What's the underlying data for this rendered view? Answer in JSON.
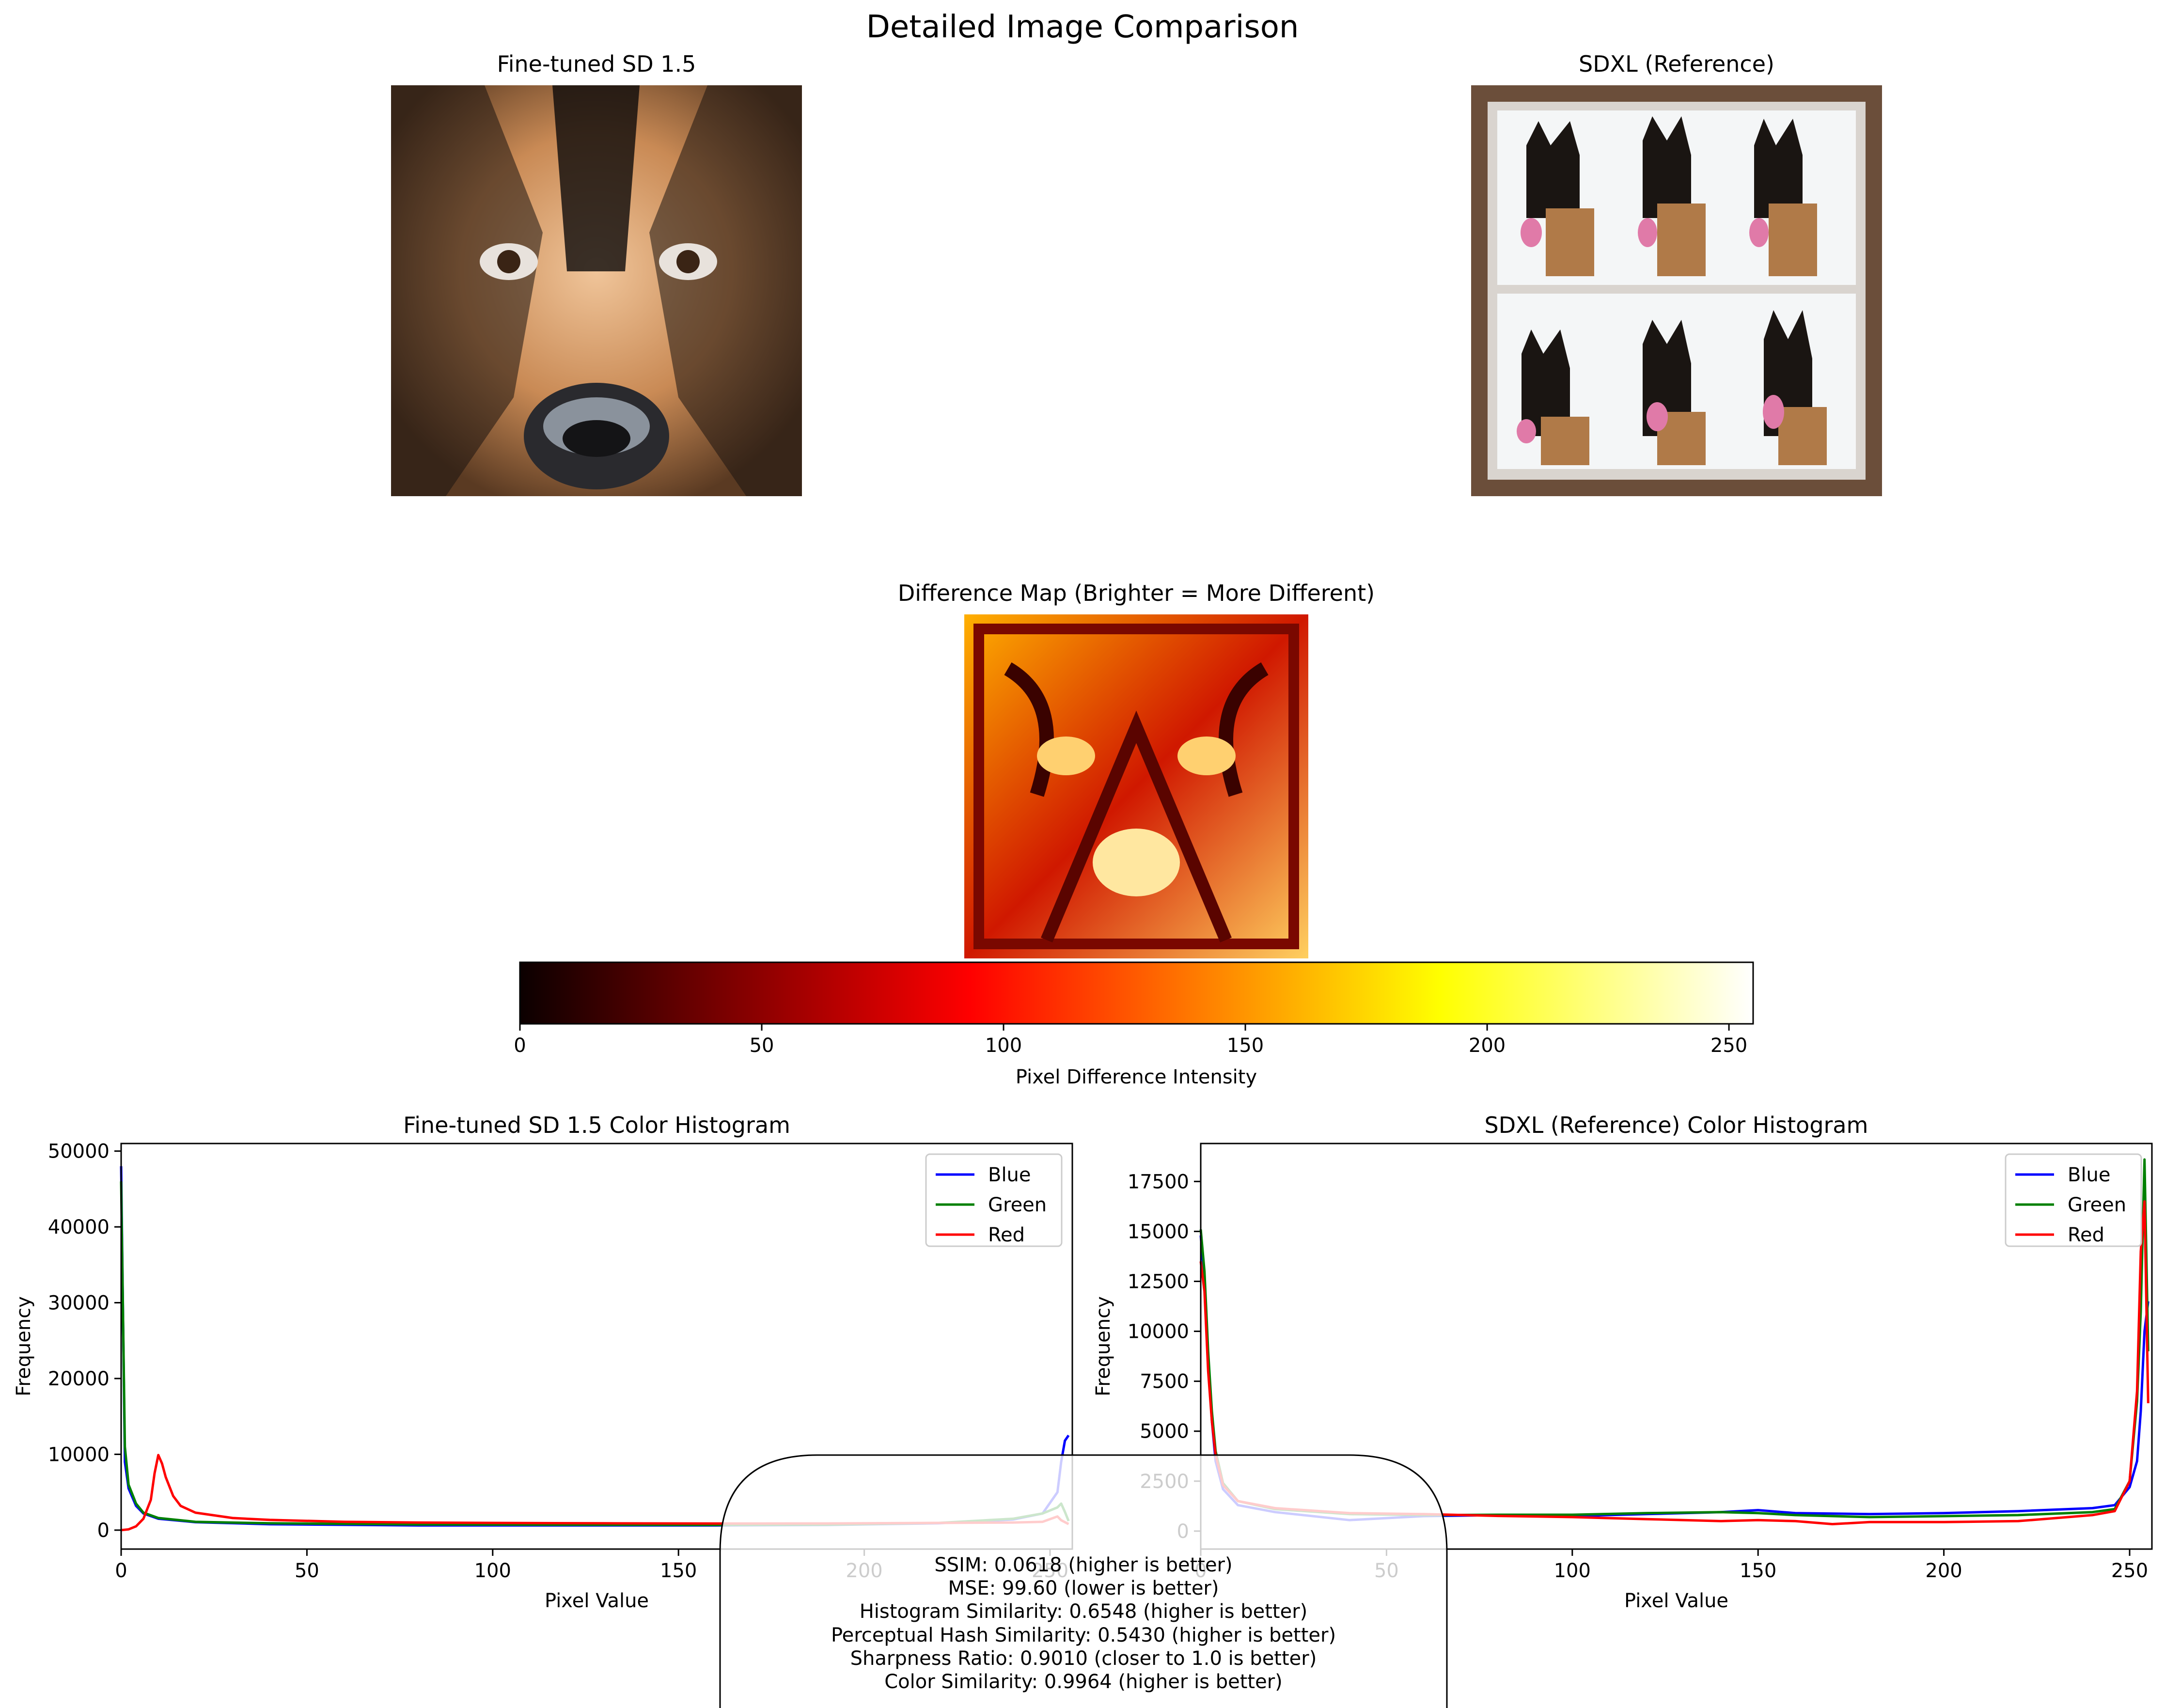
{
  "figure_title": "Detailed Image Comparison",
  "images": {
    "left_title": "Fine-tuned SD 1.5",
    "right_title": "SDXL (Reference)",
    "diff_title": "Difference Map (Brighter = More Different)"
  },
  "colorbar": {
    "label": "Pixel Difference Intensity",
    "ticks": [
      "0",
      "50",
      "100",
      "150",
      "200",
      "250"
    ],
    "tick_values": [
      0,
      50,
      100,
      150,
      200,
      250
    ],
    "range": [
      0,
      255
    ],
    "colormap": "hot"
  },
  "metrics": [
    "SSIM: 0.0618 (higher is better)",
    "MSE: 99.60 (lower is better)",
    "Histogram Similarity: 0.6548 (higher is better)",
    "Perceptual Hash Similarity: 0.5430 (higher is better)",
    "Sharpness Ratio: 0.9010 (closer to 1.0 is better)",
    "Color Similarity: 0.9964 (higher is better)"
  ],
  "colors": {
    "blue": "#0000ff",
    "green": "#008000",
    "red": "#ff0000"
  },
  "chart_data": [
    {
      "type": "line",
      "title": "Fine-tuned SD 1.5 Color Histogram",
      "xlabel": "Pixel Value",
      "ylabel": "Frequency",
      "xlim": [
        0,
        256
      ],
      "ylim": [
        -2500,
        51000
      ],
      "x_ticks": [
        "0",
        "50",
        "100",
        "150",
        "200",
        "250"
      ],
      "y_ticks": [
        "0",
        "10000",
        "20000",
        "30000",
        "40000",
        "50000"
      ],
      "legend_position": "upper right",
      "series": [
        {
          "name": "Blue",
          "color": "#0000ff",
          "points": [
            [
              0,
              48000
            ],
            [
              1,
              9000
            ],
            [
              2,
              5500
            ],
            [
              4,
              3200
            ],
            [
              6,
              2200
            ],
            [
              10,
              1500
            ],
            [
              20,
              1050
            ],
            [
              40,
              780
            ],
            [
              80,
              620
            ],
            [
              120,
              610
            ],
            [
              160,
              620
            ],
            [
              190,
              680
            ],
            [
              220,
              900
            ],
            [
              240,
              1400
            ],
            [
              248,
              2200
            ],
            [
              252,
              5000
            ],
            [
              253,
              9000
            ],
            [
              254,
              11800
            ],
            [
              255,
              12500
            ]
          ]
        },
        {
          "name": "Green",
          "color": "#008000",
          "points": [
            [
              0,
              46000
            ],
            [
              1,
              11000
            ],
            [
              2,
              6000
            ],
            [
              4,
              3500
            ],
            [
              6,
              2300
            ],
            [
              10,
              1600
            ],
            [
              20,
              1100
            ],
            [
              40,
              900
            ],
            [
              80,
              750
            ],
            [
              120,
              700
            ],
            [
              160,
              680
            ],
            [
              190,
              720
            ],
            [
              220,
              950
            ],
            [
              240,
              1500
            ],
            [
              248,
              2200
            ],
            [
              252,
              3000
            ],
            [
              253,
              3500
            ],
            [
              254,
              2400
            ],
            [
              255,
              1200
            ]
          ]
        },
        {
          "name": "Red",
          "color": "#ff0000",
          "points": [
            [
              0,
              0
            ],
            [
              2,
              100
            ],
            [
              4,
              500
            ],
            [
              6,
              1500
            ],
            [
              8,
              4000
            ],
            [
              9,
              7500
            ],
            [
              10,
              9900
            ],
            [
              11,
              8800
            ],
            [
              12,
              7000
            ],
            [
              14,
              4500
            ],
            [
              16,
              3200
            ],
            [
              20,
              2300
            ],
            [
              30,
              1600
            ],
            [
              40,
              1350
            ],
            [
              60,
              1100
            ],
            [
              80,
              1000
            ],
            [
              100,
              950
            ],
            [
              130,
              900
            ],
            [
              160,
              870
            ],
            [
              190,
              880
            ],
            [
              220,
              950
            ],
            [
              240,
              1000
            ],
            [
              248,
              1100
            ],
            [
              252,
              1800
            ],
            [
              253,
              1300
            ],
            [
              255,
              800
            ]
          ]
        }
      ]
    },
    {
      "type": "line",
      "title": "SDXL (Reference) Color Histogram",
      "xlabel": "Pixel Value",
      "ylabel": "Frequency",
      "xlim": [
        0,
        256
      ],
      "ylim": [
        -900,
        19400
      ],
      "x_ticks": [
        "0",
        "50",
        "100",
        "150",
        "200",
        "250"
      ],
      "y_ticks": [
        "0",
        "2500",
        "5000",
        "7500",
        "10000",
        "12500",
        "15000",
        "17500"
      ],
      "legend_position": "upper right",
      "series": [
        {
          "name": "Blue",
          "color": "#0000ff",
          "points": [
            [
              0,
              14800
            ],
            [
              1,
              12500
            ],
            [
              2,
              8500
            ],
            [
              3,
              5500
            ],
            [
              4,
              3500
            ],
            [
              6,
              2100
            ],
            [
              10,
              1300
            ],
            [
              20,
              950
            ],
            [
              40,
              550
            ],
            [
              60,
              750
            ],
            [
              80,
              800
            ],
            [
              100,
              750
            ],
            [
              120,
              850
            ],
            [
              140,
              950
            ],
            [
              150,
              1050
            ],
            [
              160,
              900
            ],
            [
              180,
              850
            ],
            [
              200,
              900
            ],
            [
              220,
              1000
            ],
            [
              240,
              1150
            ],
            [
              246,
              1300
            ],
            [
              250,
              2200
            ],
            [
              252,
              3500
            ],
            [
              253,
              6000
            ],
            [
              254,
              10000
            ],
            [
              255,
              11500
            ]
          ]
        },
        {
          "name": "Green",
          "color": "#008000",
          "points": [
            [
              0,
              15100
            ],
            [
              1,
              13000
            ],
            [
              2,
              9000
            ],
            [
              3,
              6000
            ],
            [
              4,
              4000
            ],
            [
              6,
              2400
            ],
            [
              10,
              1500
            ],
            [
              20,
              1100
            ],
            [
              40,
              850
            ],
            [
              60,
              800
            ],
            [
              80,
              820
            ],
            [
              100,
              820
            ],
            [
              120,
              900
            ],
            [
              140,
              950
            ],
            [
              150,
              900
            ],
            [
              160,
              800
            ],
            [
              180,
              700
            ],
            [
              200,
              750
            ],
            [
              220,
              800
            ],
            [
              240,
              950
            ],
            [
              246,
              1100
            ],
            [
              250,
              2500
            ],
            [
              252,
              6500
            ],
            [
              253,
              11000
            ],
            [
              254,
              18600
            ],
            [
              255,
              9000
            ]
          ]
        },
        {
          "name": "Red",
          "color": "#ff0000",
          "points": [
            [
              0,
              13500
            ],
            [
              1,
              12000
            ],
            [
              2,
              8000
            ],
            [
              3,
              5500
            ],
            [
              4,
              3800
            ],
            [
              6,
              2300
            ],
            [
              10,
              1500
            ],
            [
              20,
              1150
            ],
            [
              40,
              900
            ],
            [
              60,
              850
            ],
            [
              80,
              760
            ],
            [
              100,
              700
            ],
            [
              120,
              600
            ],
            [
              140,
              500
            ],
            [
              150,
              550
            ],
            [
              160,
              500
            ],
            [
              170,
              350
            ],
            [
              180,
              450
            ],
            [
              200,
              450
            ],
            [
              220,
              500
            ],
            [
              240,
              800
            ],
            [
              246,
              1000
            ],
            [
              250,
              2500
            ],
            [
              252,
              7000
            ],
            [
              253,
              14000
            ],
            [
              254,
              16500
            ],
            [
              255,
              6400
            ]
          ]
        }
      ]
    }
  ]
}
